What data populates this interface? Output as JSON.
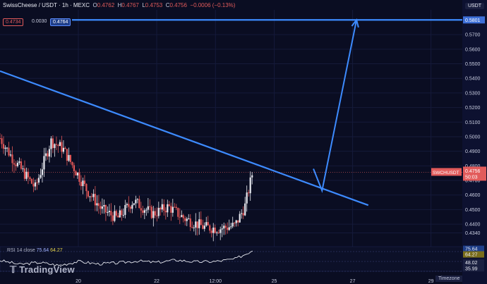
{
  "header": {
    "symbol": "SwissCheese / USDT · 1h · MEXC",
    "open_label": "O",
    "open": "0.4762",
    "high_label": "H",
    "high": "0.4767",
    "low_label": "L",
    "low": "0.4753",
    "close_label": "C",
    "close": "0.4756",
    "change": "−0.0006 (−0.13%)"
  },
  "tags": {
    "sell": "0.4734",
    "spread": "0.0030",
    "buy": "0.4764"
  },
  "currency": "USDT",
  "watermark": "TradingView",
  "timezone_button": "Timezone",
  "rsi": {
    "label": "RSI 14 close",
    "value1": "75.64",
    "value2": "64.27"
  },
  "colors": {
    "background": "#0a0d22",
    "drawing": "#3d8bff",
    "up": "#e6e8ef",
    "down": "#e05656",
    "last_price": "#e25b5b"
  },
  "chart_data": {
    "type": "candlestick",
    "price_axis": {
      "range": [
        0.427,
        0.587
      ],
      "ticks": [
        "0.5700",
        "0.5600",
        "0.5500",
        "0.5400",
        "0.5300",
        "0.5200",
        "0.5100",
        "0.5000",
        "0.4900",
        "0.4800",
        "0.4700",
        "0.4600",
        "0.4500",
        "0.4400",
        "0.4340"
      ],
      "target_tag": "0.5801",
      "last_tag": {
        "symbol": "SWCHUSDT",
        "price": "0.4756",
        "countdown": "50:03"
      }
    },
    "time_axis": {
      "range": [
        18.0,
        29.8
      ],
      "ticks": [
        {
          "label": "20",
          "t": 20
        },
        {
          "label": "22",
          "t": 22
        },
        {
          "label": "12:00",
          "t": 23.5
        },
        {
          "label": "25",
          "t": 25
        },
        {
          "label": "27",
          "t": 27
        },
        {
          "label": "29",
          "t": 29
        }
      ]
    },
    "rsi_axis": {
      "range": [
        30,
        80
      ],
      "ticks": [
        "75.64",
        "64.27",
        "48.02",
        "35.99"
      ]
    },
    "drawings": {
      "resistance_line": {
        "points": [
          [
            18.0,
            0.545
          ],
          [
            27.4,
            0.453
          ]
        ]
      },
      "target_line": {
        "price": 0.5801
      },
      "projection_path": [
        [
          26.0,
          0.478
        ],
        [
          26.22,
          0.463
        ],
        [
          27.1,
          0.5801
        ]
      ]
    },
    "price_keypoints": [
      [
        18.0,
        0.499
      ],
      [
        18.3,
        0.486
      ],
      [
        18.9,
        0.465
      ],
      [
        19.3,
        0.497
      ],
      [
        19.6,
        0.492
      ],
      [
        20.2,
        0.464
      ],
      [
        20.6,
        0.45
      ],
      [
        21.0,
        0.444
      ],
      [
        21.4,
        0.456
      ],
      [
        21.9,
        0.447
      ],
      [
        22.3,
        0.452
      ],
      [
        22.7,
        0.444
      ],
      [
        23.2,
        0.438
      ],
      [
        23.6,
        0.437
      ],
      [
        24.0,
        0.439
      ],
      [
        24.25,
        0.452
      ],
      [
        24.45,
        0.476
      ]
    ],
    "rsi_keypoints": [
      [
        18.0,
        52
      ],
      [
        18.5,
        44
      ],
      [
        19.0,
        48
      ],
      [
        19.5,
        42
      ],
      [
        20.0,
        50
      ],
      [
        20.5,
        45
      ],
      [
        21.0,
        47
      ],
      [
        21.5,
        51
      ],
      [
        22.0,
        48
      ],
      [
        22.5,
        53
      ],
      [
        23.0,
        49
      ],
      [
        23.5,
        50
      ],
      [
        24.0,
        55
      ],
      [
        24.3,
        66
      ],
      [
        24.5,
        75.6
      ]
    ]
  }
}
